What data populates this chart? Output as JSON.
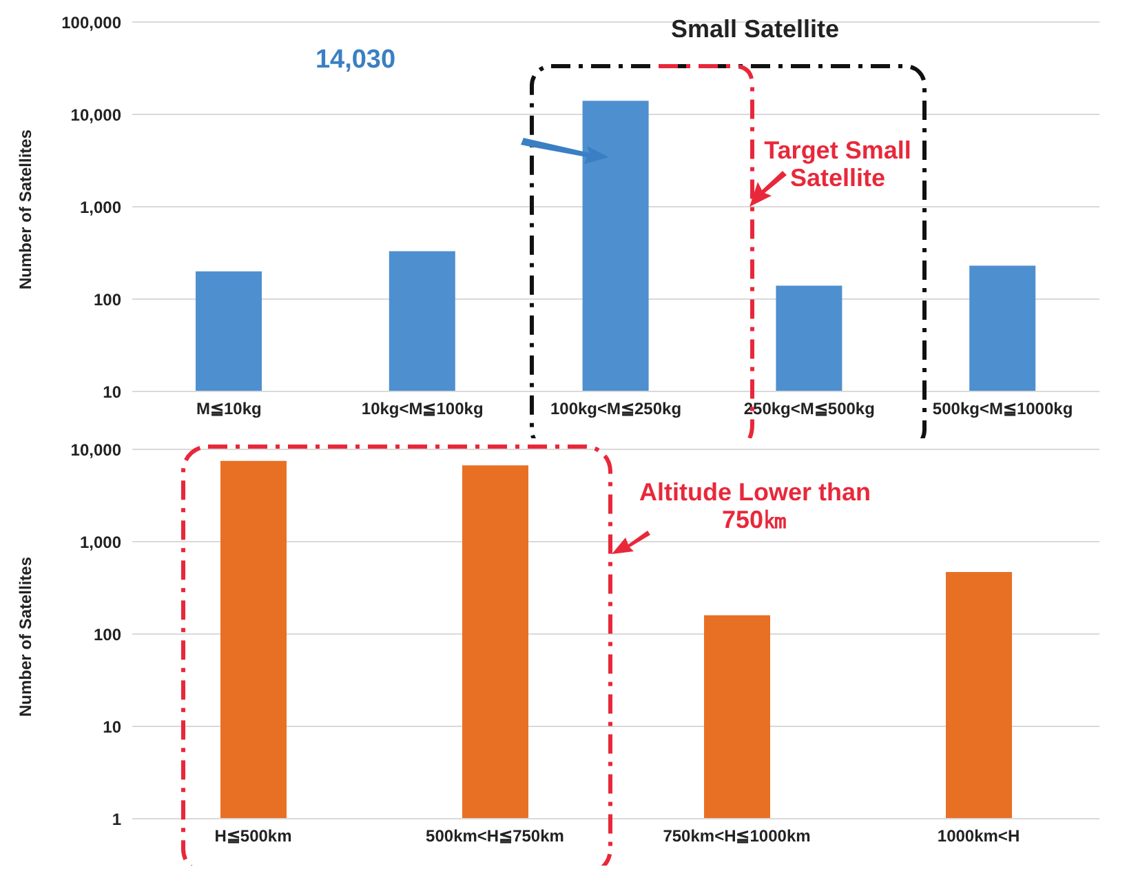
{
  "chart_data": [
    {
      "type": "bar",
      "ylabel": "Number of Satellites",
      "categories": [
        "M≦10kg",
        "10kg<M≦100kg",
        "100kg<M≦250kg",
        "250kg<M≦500kg",
        "500kg<M≦1000kg"
      ],
      "values": [
        200,
        330,
        14030,
        140,
        230
      ],
      "color": "#4e8fd0",
      "log": true,
      "ylim": [
        10,
        100000
      ],
      "yticks": [
        10,
        100,
        {
          "value": 1000,
          "label": "1,000"
        },
        {
          "value": 10000,
          "label": "10,000"
        },
        {
          "value": 100000,
          "label": "100,000"
        }
      ],
      "grid": "y",
      "annotations": [
        "Small Satellite",
        "14,030",
        "Target Small Satellite"
      ]
    },
    {
      "type": "bar",
      "ylabel": "Number of Satellites",
      "categories": [
        "H≦500km",
        "500km<H≦750km",
        "750km<H≦1000km",
        "1000km<H"
      ],
      "values": [
        7500,
        6700,
        160,
        470
      ],
      "color": "#e87025",
      "log": true,
      "ylim": [
        1,
        10000
      ],
      "yticks": [
        1,
        10,
        100,
        {
          "value": 1000,
          "label": "1,000"
        },
        {
          "value": 10000,
          "label": "10,000"
        }
      ],
      "grid": "y",
      "annotations": [
        "Altitude Lower than 750㎞"
      ]
    }
  ]
}
